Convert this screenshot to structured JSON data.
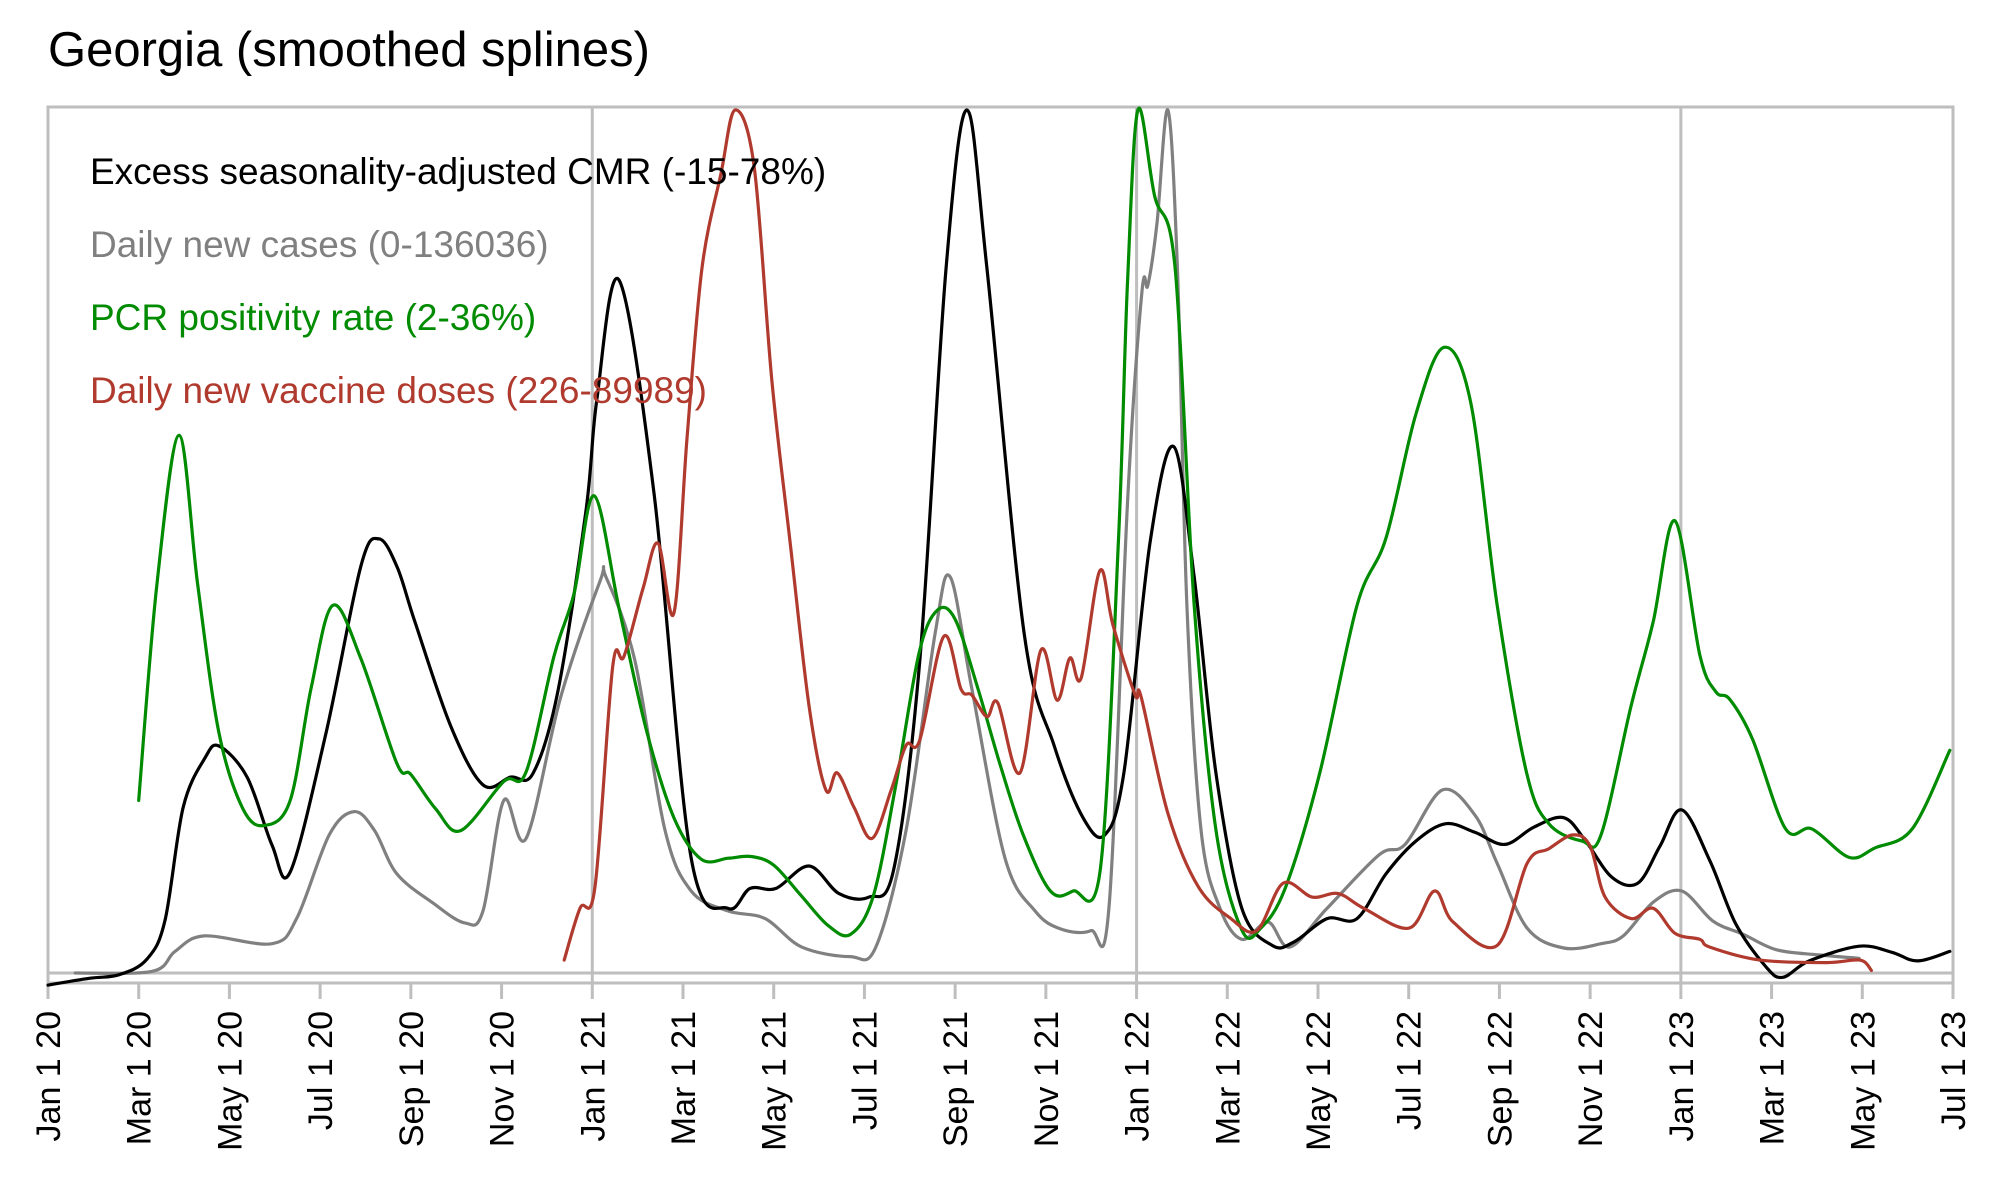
{
  "chart_data": {
    "type": "line",
    "title": "Georgia (smoothed splines)",
    "xlabel": "",
    "ylabel": "",
    "x_unit": "months since Jan 1 2020",
    "xlim": [
      0,
      42
    ],
    "ylim": [
      0,
      1
    ],
    "y_normalization": "each series scaled to its own min-max range shown in legend",
    "grid": "vertical lines at Jan 1 of each year",
    "legend_position": "top-left",
    "x_ticks": [
      {
        "m": 0,
        "label": "Jan 1 20"
      },
      {
        "m": 2,
        "label": "Mar 1 20"
      },
      {
        "m": 4,
        "label": "May 1 20"
      },
      {
        "m": 6,
        "label": "Jul 1 20"
      },
      {
        "m": 8,
        "label": "Sep 1 20"
      },
      {
        "m": 10,
        "label": "Nov 1 20"
      },
      {
        "m": 12,
        "label": "Jan 1 21"
      },
      {
        "m": 14,
        "label": "Mar 1 21"
      },
      {
        "m": 16,
        "label": "May 1 21"
      },
      {
        "m": 18,
        "label": "Jul 1 21"
      },
      {
        "m": 20,
        "label": "Sep 1 21"
      },
      {
        "m": 22,
        "label": "Nov 1 21"
      },
      {
        "m": 24,
        "label": "Jan 1 22"
      },
      {
        "m": 26,
        "label": "Mar 1 22"
      },
      {
        "m": 28,
        "label": "May 1 22"
      },
      {
        "m": 30,
        "label": "Jul 1 22"
      },
      {
        "m": 32,
        "label": "Sep 1 22"
      },
      {
        "m": 34,
        "label": "Nov 1 22"
      },
      {
        "m": 36,
        "label": "Jan 1 23"
      },
      {
        "m": 38,
        "label": "Mar 1 23"
      },
      {
        "m": 40,
        "label": "May 1 23"
      },
      {
        "m": 42,
        "label": "Jul 1 23"
      }
    ],
    "year_gridlines": [
      12,
      24,
      36
    ],
    "series": [
      {
        "name": "Excess seasonality-adjusted CMR (-15-78%)",
        "color": "#000000",
        "points": [
          [
            0,
            -0.014
          ],
          [
            0.93,
            -0.006
          ],
          [
            1.57,
            -0.002
          ],
          [
            2.18,
            0.016
          ],
          [
            2.58,
            0.061
          ],
          [
            2.98,
            0.192
          ],
          [
            3.46,
            0.249
          ],
          [
            3.77,
            0.263
          ],
          [
            4.39,
            0.227
          ],
          [
            4.94,
            0.148
          ],
          [
            5.34,
            0.117
          ],
          [
            6.13,
            0.278
          ],
          [
            6.9,
            0.472
          ],
          [
            7.3,
            0.503
          ],
          [
            7.7,
            0.47
          ],
          [
            8.09,
            0.407
          ],
          [
            8.88,
            0.286
          ],
          [
            9.59,
            0.218
          ],
          [
            10.2,
            0.227
          ],
          [
            10.69,
            0.231
          ],
          [
            11.24,
            0.326
          ],
          [
            11.86,
            0.535
          ],
          [
            12.1,
            0.664
          ],
          [
            12.59,
            0.803
          ],
          [
            13.36,
            0.556
          ],
          [
            14.18,
            0.133
          ],
          [
            14.99,
            0.075
          ],
          [
            15.48,
            0.098
          ],
          [
            16.05,
            0.098
          ],
          [
            16.78,
            0.124
          ],
          [
            17.44,
            0.092
          ],
          [
            18.1,
            0.088
          ],
          [
            18.65,
            0.121
          ],
          [
            19.22,
            0.362
          ],
          [
            19.8,
            0.817
          ],
          [
            20.26,
            1.0
          ],
          [
            20.7,
            0.817
          ],
          [
            21.52,
            0.394
          ],
          [
            22.18,
            0.264
          ],
          [
            22.82,
            0.18
          ],
          [
            23.3,
            0.16
          ],
          [
            23.72,
            0.232
          ],
          [
            24.3,
            0.5
          ],
          [
            24.82,
            0.61
          ],
          [
            25.27,
            0.459
          ],
          [
            25.75,
            0.232
          ],
          [
            26.32,
            0.075
          ],
          [
            26.99,
            0.032
          ],
          [
            27.47,
            0.036
          ],
          [
            28.2,
            0.063
          ],
          [
            28.86,
            0.063
          ],
          [
            29.5,
            0.115
          ],
          [
            30.16,
            0.153
          ],
          [
            30.82,
            0.173
          ],
          [
            31.46,
            0.163
          ],
          [
            32.12,
            0.149
          ],
          [
            32.76,
            0.169
          ],
          [
            33.42,
            0.18
          ],
          [
            33.9,
            0.153
          ],
          [
            34.48,
            0.111
          ],
          [
            35.05,
            0.104
          ],
          [
            35.54,
            0.147
          ],
          [
            36.02,
            0.189
          ],
          [
            36.64,
            0.13
          ],
          [
            37.21,
            0.057
          ],
          [
            37.88,
            0.007
          ],
          [
            38.25,
            -0.005
          ],
          [
            38.83,
            0.014
          ],
          [
            39.93,
            0.031
          ],
          [
            40.65,
            0.024
          ],
          [
            41.22,
            0.014
          ],
          [
            41.93,
            0.025
          ]
        ]
      },
      {
        "name": "Daily new cases (0-136036)",
        "color": "#808080",
        "points": [
          [
            0.6,
            0.0
          ],
          [
            2.3,
            0.002
          ],
          [
            2.8,
            0.025
          ],
          [
            3.44,
            0.043
          ],
          [
            4.94,
            0.034
          ],
          [
            5.49,
            0.064
          ],
          [
            6.2,
            0.16
          ],
          [
            6.75,
            0.187
          ],
          [
            7.2,
            0.165
          ],
          [
            7.69,
            0.115
          ],
          [
            8.49,
            0.081
          ],
          [
            9.19,
            0.058
          ],
          [
            9.59,
            0.072
          ],
          [
            10.05,
            0.2
          ],
          [
            10.54,
            0.156
          ],
          [
            11.31,
            0.321
          ],
          [
            12.17,
            0.454
          ],
          [
            12.3,
            0.459
          ],
          [
            12.94,
            0.362
          ],
          [
            13.6,
            0.166
          ],
          [
            14.18,
            0.095
          ],
          [
            14.99,
            0.072
          ],
          [
            15.81,
            0.063
          ],
          [
            16.62,
            0.03
          ],
          [
            17.68,
            0.019
          ],
          [
            18.25,
            0.03
          ],
          [
            18.92,
            0.166
          ],
          [
            19.56,
            0.394
          ],
          [
            19.89,
            0.459
          ],
          [
            20.37,
            0.329
          ],
          [
            21.1,
            0.133
          ],
          [
            21.76,
            0.072
          ],
          [
            22.33,
            0.051
          ],
          [
            22.99,
            0.049
          ],
          [
            23.39,
            0.075
          ],
          [
            23.81,
            0.556
          ],
          [
            24.12,
            0.79
          ],
          [
            24.25,
            0.797
          ],
          [
            24.45,
            0.869
          ],
          [
            24.69,
            1.0
          ],
          [
            24.9,
            0.817
          ],
          [
            25.11,
            0.426
          ],
          [
            25.42,
            0.166
          ],
          [
            25.84,
            0.075
          ],
          [
            26.32,
            0.039
          ],
          [
            26.9,
            0.059
          ],
          [
            27.38,
            0.03
          ],
          [
            28.2,
            0.075
          ],
          [
            29.35,
            0.137
          ],
          [
            29.92,
            0.149
          ],
          [
            30.74,
            0.212
          ],
          [
            31.46,
            0.183
          ],
          [
            31.95,
            0.127
          ],
          [
            32.61,
            0.052
          ],
          [
            33.42,
            0.029
          ],
          [
            34.24,
            0.034
          ],
          [
            34.73,
            0.043
          ],
          [
            35.39,
            0.082
          ],
          [
            36.02,
            0.095
          ],
          [
            36.71,
            0.06
          ],
          [
            37.37,
            0.045
          ],
          [
            38.1,
            0.027
          ],
          [
            39.04,
            0.021
          ],
          [
            39.93,
            0.017
          ]
        ]
      },
      {
        "name": "PCR positivity rate (2-36%)",
        "color": "#008b00",
        "points": [
          [
            2.0,
            0.2
          ],
          [
            2.4,
            0.45
          ],
          [
            2.89,
            0.623
          ],
          [
            3.3,
            0.45
          ],
          [
            3.77,
            0.278
          ],
          [
            4.3,
            0.19
          ],
          [
            4.78,
            0.171
          ],
          [
            5.34,
            0.2
          ],
          [
            5.8,
            0.33
          ],
          [
            6.28,
            0.426
          ],
          [
            6.9,
            0.364
          ],
          [
            7.69,
            0.243
          ],
          [
            8.0,
            0.23
          ],
          [
            8.55,
            0.19
          ],
          [
            9.1,
            0.165
          ],
          [
            10.05,
            0.222
          ],
          [
            10.54,
            0.233
          ],
          [
            11.16,
            0.368
          ],
          [
            11.6,
            0.44
          ],
          [
            12.04,
            0.553
          ],
          [
            12.6,
            0.42
          ],
          [
            13.2,
            0.28
          ],
          [
            13.8,
            0.18
          ],
          [
            14.4,
            0.132
          ],
          [
            15.0,
            0.133
          ],
          [
            15.5,
            0.135
          ],
          [
            16.0,
            0.125
          ],
          [
            16.6,
            0.09
          ],
          [
            17.2,
            0.055
          ],
          [
            17.7,
            0.045
          ],
          [
            18.2,
            0.09
          ],
          [
            18.7,
            0.22
          ],
          [
            19.2,
            0.37
          ],
          [
            19.6,
            0.42
          ],
          [
            20.0,
            0.41
          ],
          [
            20.5,
            0.33
          ],
          [
            21.0,
            0.24
          ],
          [
            21.5,
            0.16
          ],
          [
            22.1,
            0.095
          ],
          [
            22.6,
            0.095
          ],
          [
            23.2,
            0.12
          ],
          [
            23.6,
            0.5
          ],
          [
            23.8,
            0.8
          ],
          [
            24.03,
            1.0
          ],
          [
            24.4,
            0.9
          ],
          [
            24.85,
            0.817
          ],
          [
            25.27,
            0.426
          ],
          [
            25.75,
            0.166
          ],
          [
            26.32,
            0.05
          ],
          [
            26.74,
            0.052
          ],
          [
            27.29,
            0.1
          ],
          [
            28.04,
            0.232
          ],
          [
            28.86,
            0.426
          ],
          [
            29.5,
            0.504
          ],
          [
            30.16,
            0.648
          ],
          [
            30.78,
            0.725
          ],
          [
            31.37,
            0.66
          ],
          [
            31.95,
            0.426
          ],
          [
            32.6,
            0.232
          ],
          [
            33.09,
            0.173
          ],
          [
            33.82,
            0.153
          ],
          [
            34.24,
            0.16
          ],
          [
            34.9,
            0.309
          ],
          [
            35.39,
            0.407
          ],
          [
            35.87,
            0.524
          ],
          [
            36.42,
            0.368
          ],
          [
            36.77,
            0.326
          ],
          [
            37.08,
            0.317
          ],
          [
            37.58,
            0.271
          ],
          [
            38.31,
            0.167
          ],
          [
            38.89,
            0.167
          ],
          [
            39.71,
            0.134
          ],
          [
            40.28,
            0.145
          ],
          [
            41.1,
            0.167
          ],
          [
            41.93,
            0.258
          ]
        ]
      },
      {
        "name": "Daily new vaccine doses (226-89989)",
        "color": "#b03a2e",
        "points": [
          [
            11.38,
            0.015
          ],
          [
            11.73,
            0.075
          ],
          [
            12.06,
            0.1
          ],
          [
            12.45,
            0.355
          ],
          [
            12.7,
            0.367
          ],
          [
            13.12,
            0.446
          ],
          [
            13.45,
            0.498
          ],
          [
            13.8,
            0.417
          ],
          [
            14.09,
            0.621
          ],
          [
            14.42,
            0.817
          ],
          [
            14.84,
            0.927
          ],
          [
            15.15,
            1.0
          ],
          [
            15.57,
            0.934
          ],
          [
            15.96,
            0.686
          ],
          [
            16.38,
            0.491
          ],
          [
            16.78,
            0.309
          ],
          [
            17.15,
            0.212
          ],
          [
            17.4,
            0.232
          ],
          [
            17.77,
            0.192
          ],
          [
            18.17,
            0.156
          ],
          [
            18.59,
            0.212
          ],
          [
            18.92,
            0.264
          ],
          [
            19.22,
            0.27
          ],
          [
            19.75,
            0.39
          ],
          [
            20.13,
            0.329
          ],
          [
            20.37,
            0.322
          ],
          [
            20.7,
            0.297
          ],
          [
            20.94,
            0.313
          ],
          [
            21.43,
            0.232
          ],
          [
            21.89,
            0.374
          ],
          [
            22.25,
            0.316
          ],
          [
            22.53,
            0.365
          ],
          [
            22.78,
            0.342
          ],
          [
            23.19,
            0.466
          ],
          [
            23.48,
            0.403
          ],
          [
            23.97,
            0.322
          ],
          [
            24.1,
            0.32
          ],
          [
            24.69,
            0.185
          ],
          [
            25.36,
            0.1
          ],
          [
            26.08,
            0.063
          ],
          [
            26.65,
            0.049
          ],
          [
            27.23,
            0.104
          ],
          [
            27.87,
            0.088
          ],
          [
            28.45,
            0.092
          ],
          [
            29.01,
            0.075
          ],
          [
            30.01,
            0.052
          ],
          [
            30.57,
            0.095
          ],
          [
            30.98,
            0.059
          ],
          [
            31.95,
            0.032
          ],
          [
            32.61,
            0.127
          ],
          [
            33.09,
            0.144
          ],
          [
            33.62,
            0.16
          ],
          [
            34.0,
            0.147
          ],
          [
            34.33,
            0.088
          ],
          [
            34.9,
            0.063
          ],
          [
            35.39,
            0.075
          ],
          [
            35.87,
            0.046
          ],
          [
            36.42,
            0.039
          ],
          [
            36.64,
            0.03
          ],
          [
            37.75,
            0.015
          ],
          [
            39.22,
            0.012
          ],
          [
            39.95,
            0.015
          ],
          [
            40.2,
            0.003
          ]
        ]
      }
    ]
  }
}
